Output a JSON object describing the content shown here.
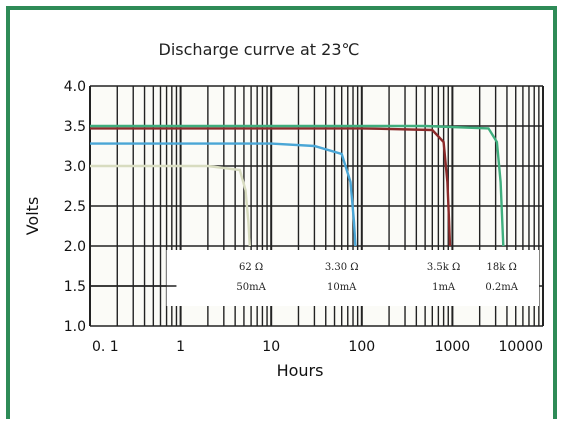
{
  "chart_data": {
    "type": "line",
    "title": "Discharge currve  at 23℃",
    "xlabel": "Hours",
    "ylabel": "Volts",
    "x_scale": "log",
    "xlim": [
      0.1,
      10000
    ],
    "ylim": [
      1.0,
      4.0
    ],
    "x_ticks": [
      "0. 1",
      "1",
      "10",
      "100",
      "1000",
      "10000"
    ],
    "y_ticks": [
      "1.0",
      "1.5",
      "2.0",
      "2.5",
      "3.0",
      "3.5",
      "4.0"
    ],
    "grid": true,
    "series": [
      {
        "color": "#d8dcc0",
        "points": [
          [
            0.1,
            3.0
          ],
          [
            2,
            3.0
          ],
          [
            4.5,
            2.95
          ],
          [
            5.2,
            2.7
          ],
          [
            5.6,
            2.3
          ],
          [
            5.8,
            2.0
          ]
        ]
      },
      {
        "color": "#4aa6d6",
        "points": [
          [
            0.1,
            3.28
          ],
          [
            10,
            3.28
          ],
          [
            30,
            3.25
          ],
          [
            60,
            3.15
          ],
          [
            75,
            2.8
          ],
          [
            82,
            2.3
          ],
          [
            85,
            2.0
          ]
        ]
      },
      {
        "color": "#8b2a2a",
        "points": [
          [
            0.1,
            3.47
          ],
          [
            100,
            3.47
          ],
          [
            600,
            3.45
          ],
          [
            800,
            3.3
          ],
          [
            880,
            2.8
          ],
          [
            920,
            2.3
          ],
          [
            940,
            2.0
          ]
        ]
      },
      {
        "color": "#3fae7e",
        "points": [
          [
            0.1,
            3.5
          ],
          [
            500,
            3.5
          ],
          [
            2500,
            3.47
          ],
          [
            3100,
            3.3
          ],
          [
            3400,
            2.8
          ],
          [
            3550,
            2.3
          ],
          [
            3650,
            2.0
          ]
        ]
      }
    ],
    "annotations": [
      {
        "line1": "62 Ω",
        "line2": "50mA",
        "x": 6
      },
      {
        "line1": "3.30 Ω",
        "line2": "10mA",
        "x": 60
      },
      {
        "line1": "3.5k Ω",
        "line2": "1mA",
        "x": 800
      },
      {
        "line1": "18k Ω",
        "line2": "0.2mA",
        "x": 3500
      }
    ]
  }
}
